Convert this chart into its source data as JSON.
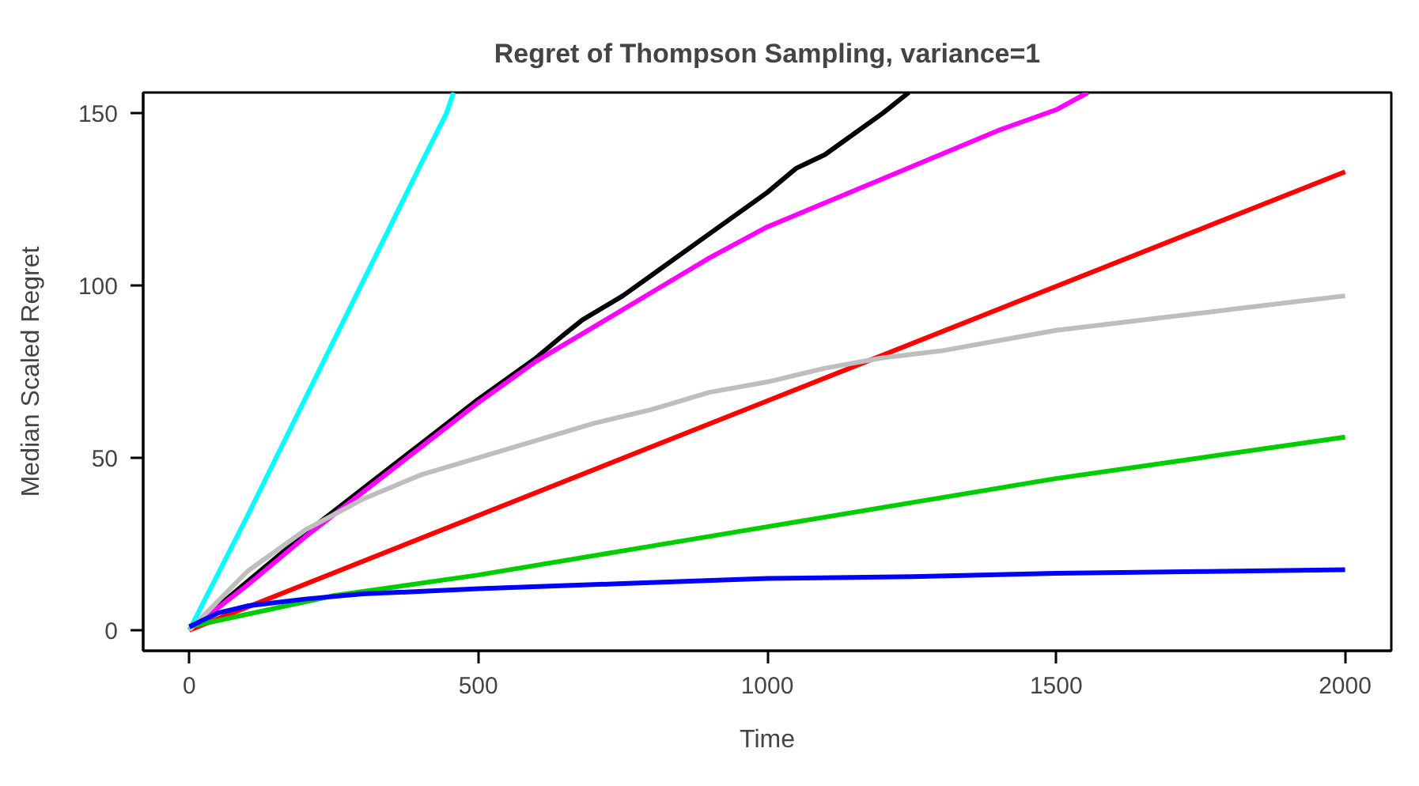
{
  "chart_data": {
    "type": "line",
    "title": "Regret of Thompson Sampling, variance=1",
    "xlabel": "Time",
    "ylabel": "Median Scaled Regret",
    "xlim": [
      -80,
      2080
    ],
    "ylim": [
      -6,
      156
    ],
    "xticks": [
      0,
      500,
      1000,
      1500,
      2000
    ],
    "yticks": [
      0,
      50,
      100,
      150
    ],
    "grid": false,
    "series": [
      {
        "color": "#00ffff",
        "x": [
          0,
          100,
          200,
          300,
          400,
          445,
          457
        ],
        "values": [
          0,
          33,
          67,
          101,
          135,
          150,
          156
        ]
      },
      {
        "color": "#000000",
        "x": [
          0,
          100,
          200,
          300,
          400,
          500,
          600,
          650,
          680,
          750,
          800,
          900,
          1000,
          1050,
          1100,
          1150,
          1200,
          1245
        ],
        "values": [
          0,
          14,
          28,
          41,
          54,
          67,
          79,
          86,
          90,
          97,
          103,
          115,
          127,
          134,
          138,
          144,
          150,
          156
        ]
      },
      {
        "color": "#ff00ff",
        "x": [
          0,
          100,
          200,
          300,
          400,
          500,
          600,
          700,
          800,
          900,
          1000,
          1100,
          1200,
          1300,
          1400,
          1500,
          1555
        ],
        "values": [
          0,
          13,
          27,
          40,
          53,
          66,
          78,
          88,
          98,
          108,
          117,
          124,
          131,
          138,
          145,
          151,
          156
        ]
      },
      {
        "color": "#ff0000",
        "x": [
          0,
          1000,
          2000
        ],
        "values": [
          0,
          66.5,
          133
        ]
      },
      {
        "color": "#bebebe",
        "x": [
          0,
          100,
          200,
          300,
          400,
          500,
          600,
          700,
          800,
          900,
          1000,
          1100,
          1200,
          1300,
          1400,
          1500,
          1600,
          1700,
          1800,
          1900,
          2000
        ],
        "values": [
          0,
          17,
          29,
          38,
          45,
          50,
          55,
          60,
          64,
          69,
          72,
          76,
          79,
          81,
          84,
          87,
          89,
          91,
          93,
          95,
          97
        ]
      },
      {
        "color": "#00cd00",
        "x": [
          0,
          250,
          500,
          750,
          1000,
          1250,
          1500,
          1750,
          2000
        ],
        "values": [
          1,
          10,
          16,
          23,
          30,
          37,
          44,
          50,
          56
        ]
      },
      {
        "color": "#0000ff",
        "x": [
          0,
          50,
          100,
          200,
          300,
          500,
          750,
          1000,
          1250,
          1500,
          1750,
          2000
        ],
        "values": [
          1,
          5,
          7,
          9,
          10.5,
          12,
          13.5,
          15,
          15.5,
          16.5,
          17,
          17.5
        ]
      }
    ]
  }
}
